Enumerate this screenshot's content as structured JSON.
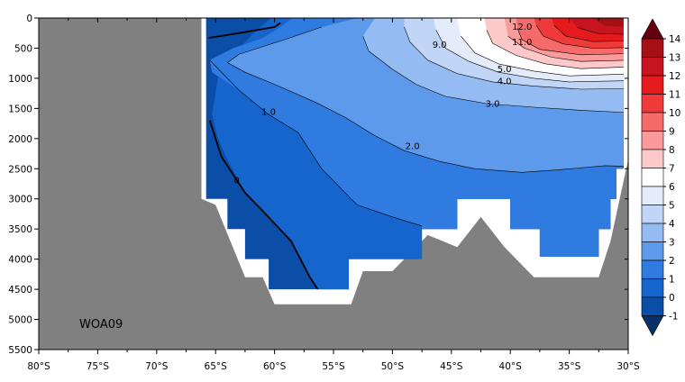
{
  "chart_data": {
    "type": "heatmap",
    "title": "",
    "xlabel": "",
    "ylabel": "",
    "x_ticks": [
      "80°S",
      "75°S",
      "70°S",
      "65°S",
      "60°S",
      "55°S",
      "50°S",
      "45°S",
      "40°S",
      "35°S",
      "30°S"
    ],
    "x_tick_values": [
      -80,
      -75,
      -70,
      -65,
      -60,
      -55,
      -50,
      -45,
      -40,
      -35,
      -30
    ],
    "xlim": [
      -80,
      -30
    ],
    "y_ticks": [
      "0",
      "500",
      "1000",
      "1500",
      "2000",
      "2500",
      "3000",
      "3500",
      "4000",
      "4500",
      "5000",
      "5500"
    ],
    "y_tick_values": [
      0,
      500,
      1000,
      1500,
      2000,
      2500,
      3000,
      3500,
      4000,
      4500,
      5000,
      5500
    ],
    "ylim": [
      0,
      5500
    ],
    "y_inverted": true,
    "annotation": "WOA09",
    "contour_labels": [
      {
        "text": "12.0",
        "x": -39,
        "y": 150
      },
      {
        "text": "11.0",
        "x": -39,
        "y": 400
      },
      {
        "text": "9.0",
        "x": -46,
        "y": 450
      },
      {
        "text": "5.0",
        "x": -40.5,
        "y": 850
      },
      {
        "text": "4.0",
        "x": -40.5,
        "y": 1050
      },
      {
        "text": "3.0",
        "x": -41.5,
        "y": 1430
      },
      {
        "text": "2.0",
        "x": -48.3,
        "y": 2130
      },
      {
        "text": "1.0",
        "x": -60.5,
        "y": 1560
      },
      {
        "text": "0",
        "x": -63.2,
        "y": 2700
      }
    ],
    "colorbar": {
      "labels": [
        "14",
        "13",
        "12",
        "11",
        "10",
        "9",
        "8",
        "7",
        "6",
        "5",
        "4",
        "3",
        "2",
        "1",
        "0",
        "-1"
      ],
      "bins": [
        {
          "from": 13,
          "to": 14,
          "color": "#a50f15"
        },
        {
          "from": 12,
          "to": 13,
          "color": "#c8141e"
        },
        {
          "from": 11,
          "to": 12,
          "color": "#e41a1c"
        },
        {
          "from": 10,
          "to": 11,
          "color": "#f03a3a"
        },
        {
          "from": 9,
          "to": 10,
          "color": "#f66a6a"
        },
        {
          "from": 8,
          "to": 9,
          "color": "#fa9a9a"
        },
        {
          "from": 7,
          "to": 8,
          "color": "#fdc8c8"
        },
        {
          "from": 6,
          "to": 7,
          "color": "#ffffff"
        },
        {
          "from": 5,
          "to": 6,
          "color": "#e4ecfb"
        },
        {
          "from": 4,
          "to": 5,
          "color": "#c1d6f7"
        },
        {
          "from": 3,
          "to": 4,
          "color": "#94bbf2"
        },
        {
          "from": 2,
          "to": 3,
          "color": "#5d9aeb"
        },
        {
          "from": 1,
          "to": 2,
          "color": "#2f7be0"
        },
        {
          "from": 0,
          "to": 1,
          "color": "#1565cc"
        },
        {
          "from": -1,
          "to": 0,
          "color": "#0b4ea8"
        }
      ],
      "top_extend_color": "#67000d",
      "bottom_extend_color": "#08306b"
    },
    "land_color": "#808080"
  }
}
